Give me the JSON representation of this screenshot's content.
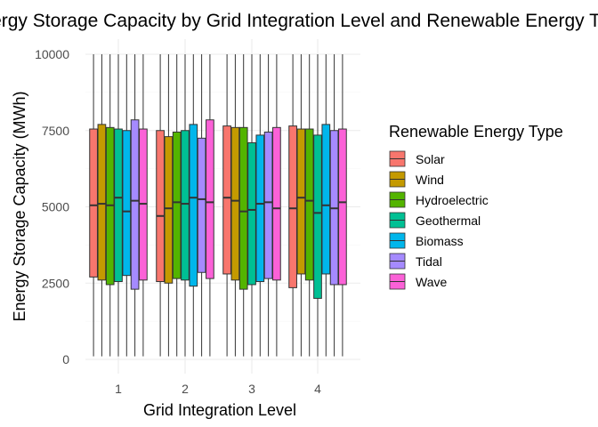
{
  "chart_data": {
    "type": "boxplot",
    "title": "Energy Storage Capacity by Grid Integration Level and Renewable Energy Type",
    "xlabel": "Grid Integration Level",
    "ylabel": "Energy Storage Capacity (MWh)",
    "ylim": [
      0,
      10000
    ],
    "y_ticks": [
      0,
      2500,
      5000,
      7500,
      10000
    ],
    "y_tick_labels": [
      "0",
      "2500",
      "5000",
      "7500",
      "10000"
    ],
    "categories": [
      "1",
      "2",
      "3",
      "4"
    ],
    "legend_title": "Renewable Energy Type",
    "legend_position": "right",
    "series": [
      {
        "name": "Solar",
        "color": "#F8766D",
        "stats": [
          {
            "min": 100,
            "q1": 2700,
            "median": 5050,
            "q3": 7550,
            "max": 10000
          },
          {
            "min": 100,
            "q1": 2550,
            "median": 4700,
            "q3": 7500,
            "max": 10000
          },
          {
            "min": 100,
            "q1": 2800,
            "median": 5300,
            "q3": 7650,
            "max": 10000
          },
          {
            "min": 100,
            "q1": 2350,
            "median": 4950,
            "q3": 7650,
            "max": 10000
          }
        ]
      },
      {
        "name": "Wind",
        "color": "#C49A00",
        "stats": [
          {
            "min": 100,
            "q1": 2600,
            "median": 5100,
            "q3": 7700,
            "max": 10000
          },
          {
            "min": 100,
            "q1": 2500,
            "median": 4950,
            "q3": 7300,
            "max": 10000
          },
          {
            "min": 100,
            "q1": 2600,
            "median": 5200,
            "q3": 7600,
            "max": 10000
          },
          {
            "min": 100,
            "q1": 2800,
            "median": 5300,
            "q3": 7550,
            "max": 10000
          }
        ]
      },
      {
        "name": "Hydroelectric",
        "color": "#53B400",
        "stats": [
          {
            "min": 100,
            "q1": 2450,
            "median": 5050,
            "q3": 7600,
            "max": 10000
          },
          {
            "min": 100,
            "q1": 2650,
            "median": 5150,
            "q3": 7450,
            "max": 10000
          },
          {
            "min": 100,
            "q1": 2300,
            "median": 4850,
            "q3": 7600,
            "max": 10000
          },
          {
            "min": 100,
            "q1": 2600,
            "median": 5200,
            "q3": 7550,
            "max": 10000
          }
        ]
      },
      {
        "name": "Geothermal",
        "color": "#00C094",
        "stats": [
          {
            "min": 100,
            "q1": 2550,
            "median": 5300,
            "q3": 7550,
            "max": 10000
          },
          {
            "min": 100,
            "q1": 2600,
            "median": 5100,
            "q3": 7500,
            "max": 10000
          },
          {
            "min": 100,
            "q1": 2450,
            "median": 4900,
            "q3": 7100,
            "max": 10000
          },
          {
            "min": 100,
            "q1": 2000,
            "median": 4800,
            "q3": 7350,
            "max": 10000
          }
        ]
      },
      {
        "name": "Biomass",
        "color": "#00B6EB",
        "stats": [
          {
            "min": 100,
            "q1": 2750,
            "median": 4850,
            "q3": 7500,
            "max": 10000
          },
          {
            "min": 100,
            "q1": 2400,
            "median": 5300,
            "q3": 7700,
            "max": 10000
          },
          {
            "min": 100,
            "q1": 2550,
            "median": 5100,
            "q3": 7350,
            "max": 10000
          },
          {
            "min": 100,
            "q1": 2800,
            "median": 5050,
            "q3": 7700,
            "max": 10000
          }
        ]
      },
      {
        "name": "Tidal",
        "color": "#A58AFF",
        "stats": [
          {
            "min": 100,
            "q1": 2300,
            "median": 5200,
            "q3": 7850,
            "max": 10000
          },
          {
            "min": 100,
            "q1": 2850,
            "median": 5250,
            "q3": 7250,
            "max": 10000
          },
          {
            "min": 100,
            "q1": 2650,
            "median": 5150,
            "q3": 7450,
            "max": 10000
          },
          {
            "min": 100,
            "q1": 2450,
            "median": 4950,
            "q3": 7500,
            "max": 10000
          }
        ]
      },
      {
        "name": "Wave",
        "color": "#FB61D7",
        "stats": [
          {
            "min": 100,
            "q1": 2600,
            "median": 5100,
            "q3": 7550,
            "max": 10000
          },
          {
            "min": 100,
            "q1": 2650,
            "median": 5150,
            "q3": 7850,
            "max": 10000
          },
          {
            "min": 100,
            "q1": 2600,
            "median": 4950,
            "q3": 7600,
            "max": 10000
          },
          {
            "min": 100,
            "q1": 2450,
            "median": 5150,
            "q3": 7550,
            "max": 10000
          }
        ]
      }
    ]
  }
}
